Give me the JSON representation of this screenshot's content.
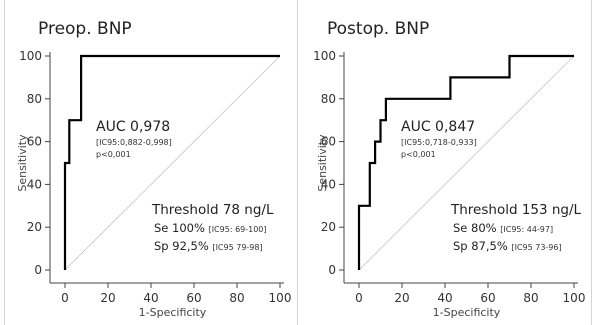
{
  "chart_data": [
    {
      "type": "line",
      "title": "Preop. BNP",
      "xlabel": "1-Specificity",
      "ylabel": "Sensitivity",
      "xlim": [
        0,
        100
      ],
      "ylim": [
        0,
        100
      ],
      "xticks": [
        "0",
        "20",
        "40",
        "60",
        "80",
        "100"
      ],
      "yticks": [
        "0",
        "20",
        "40",
        "60",
        "80",
        "100"
      ],
      "series": [
        {
          "x": [
            0,
            0,
            2,
            2,
            4,
            4,
            7.5,
            7.5,
            100
          ],
          "y": [
            0,
            50,
            50,
            70,
            70,
            70,
            70,
            100,
            100
          ]
        }
      ],
      "auc_text": "AUC 0,978",
      "ci_text": "[IC95:0,882-0,998]",
      "p_text": "p<0,001",
      "threshold_text": "Threshold 78 ng/L",
      "se_label": "Se 100% ",
      "se_ci": "[IC95: 69-100]",
      "sp_label": "Sp 92,5% ",
      "sp_ci": "[IC95 79-98]"
    },
    {
      "type": "line",
      "title": "Postop. BNP",
      "xlabel": "1-Specificity",
      "ylabel": "Sensitivity",
      "xlim": [
        0,
        100
      ],
      "ylim": [
        0,
        100
      ],
      "xticks": [
        "0",
        "20",
        "40",
        "60",
        "80",
        "100"
      ],
      "yticks": [
        "0",
        "20",
        "40",
        "60",
        "80",
        "100"
      ],
      "series": [
        {
          "x": [
            0,
            0,
            5,
            5,
            7.5,
            7.5,
            10,
            10,
            12.5,
            12.5,
            42.5,
            42.5,
            70,
            70,
            100
          ],
          "y": [
            0,
            30,
            30,
            50,
            50,
            60,
            60,
            70,
            70,
            80,
            80,
            90,
            90,
            100,
            100
          ]
        }
      ],
      "auc_text": "AUC 0,847",
      "ci_text": "[IC95:0,718-0,933]",
      "p_text": "p<0,001",
      "threshold_text": "Threshold 153 ng/L",
      "se_label": "Se 80% ",
      "se_ci": "[IC95: 44-97]",
      "sp_label": "Sp 87,5% ",
      "sp_ci": "[IC95 73-96]"
    }
  ]
}
